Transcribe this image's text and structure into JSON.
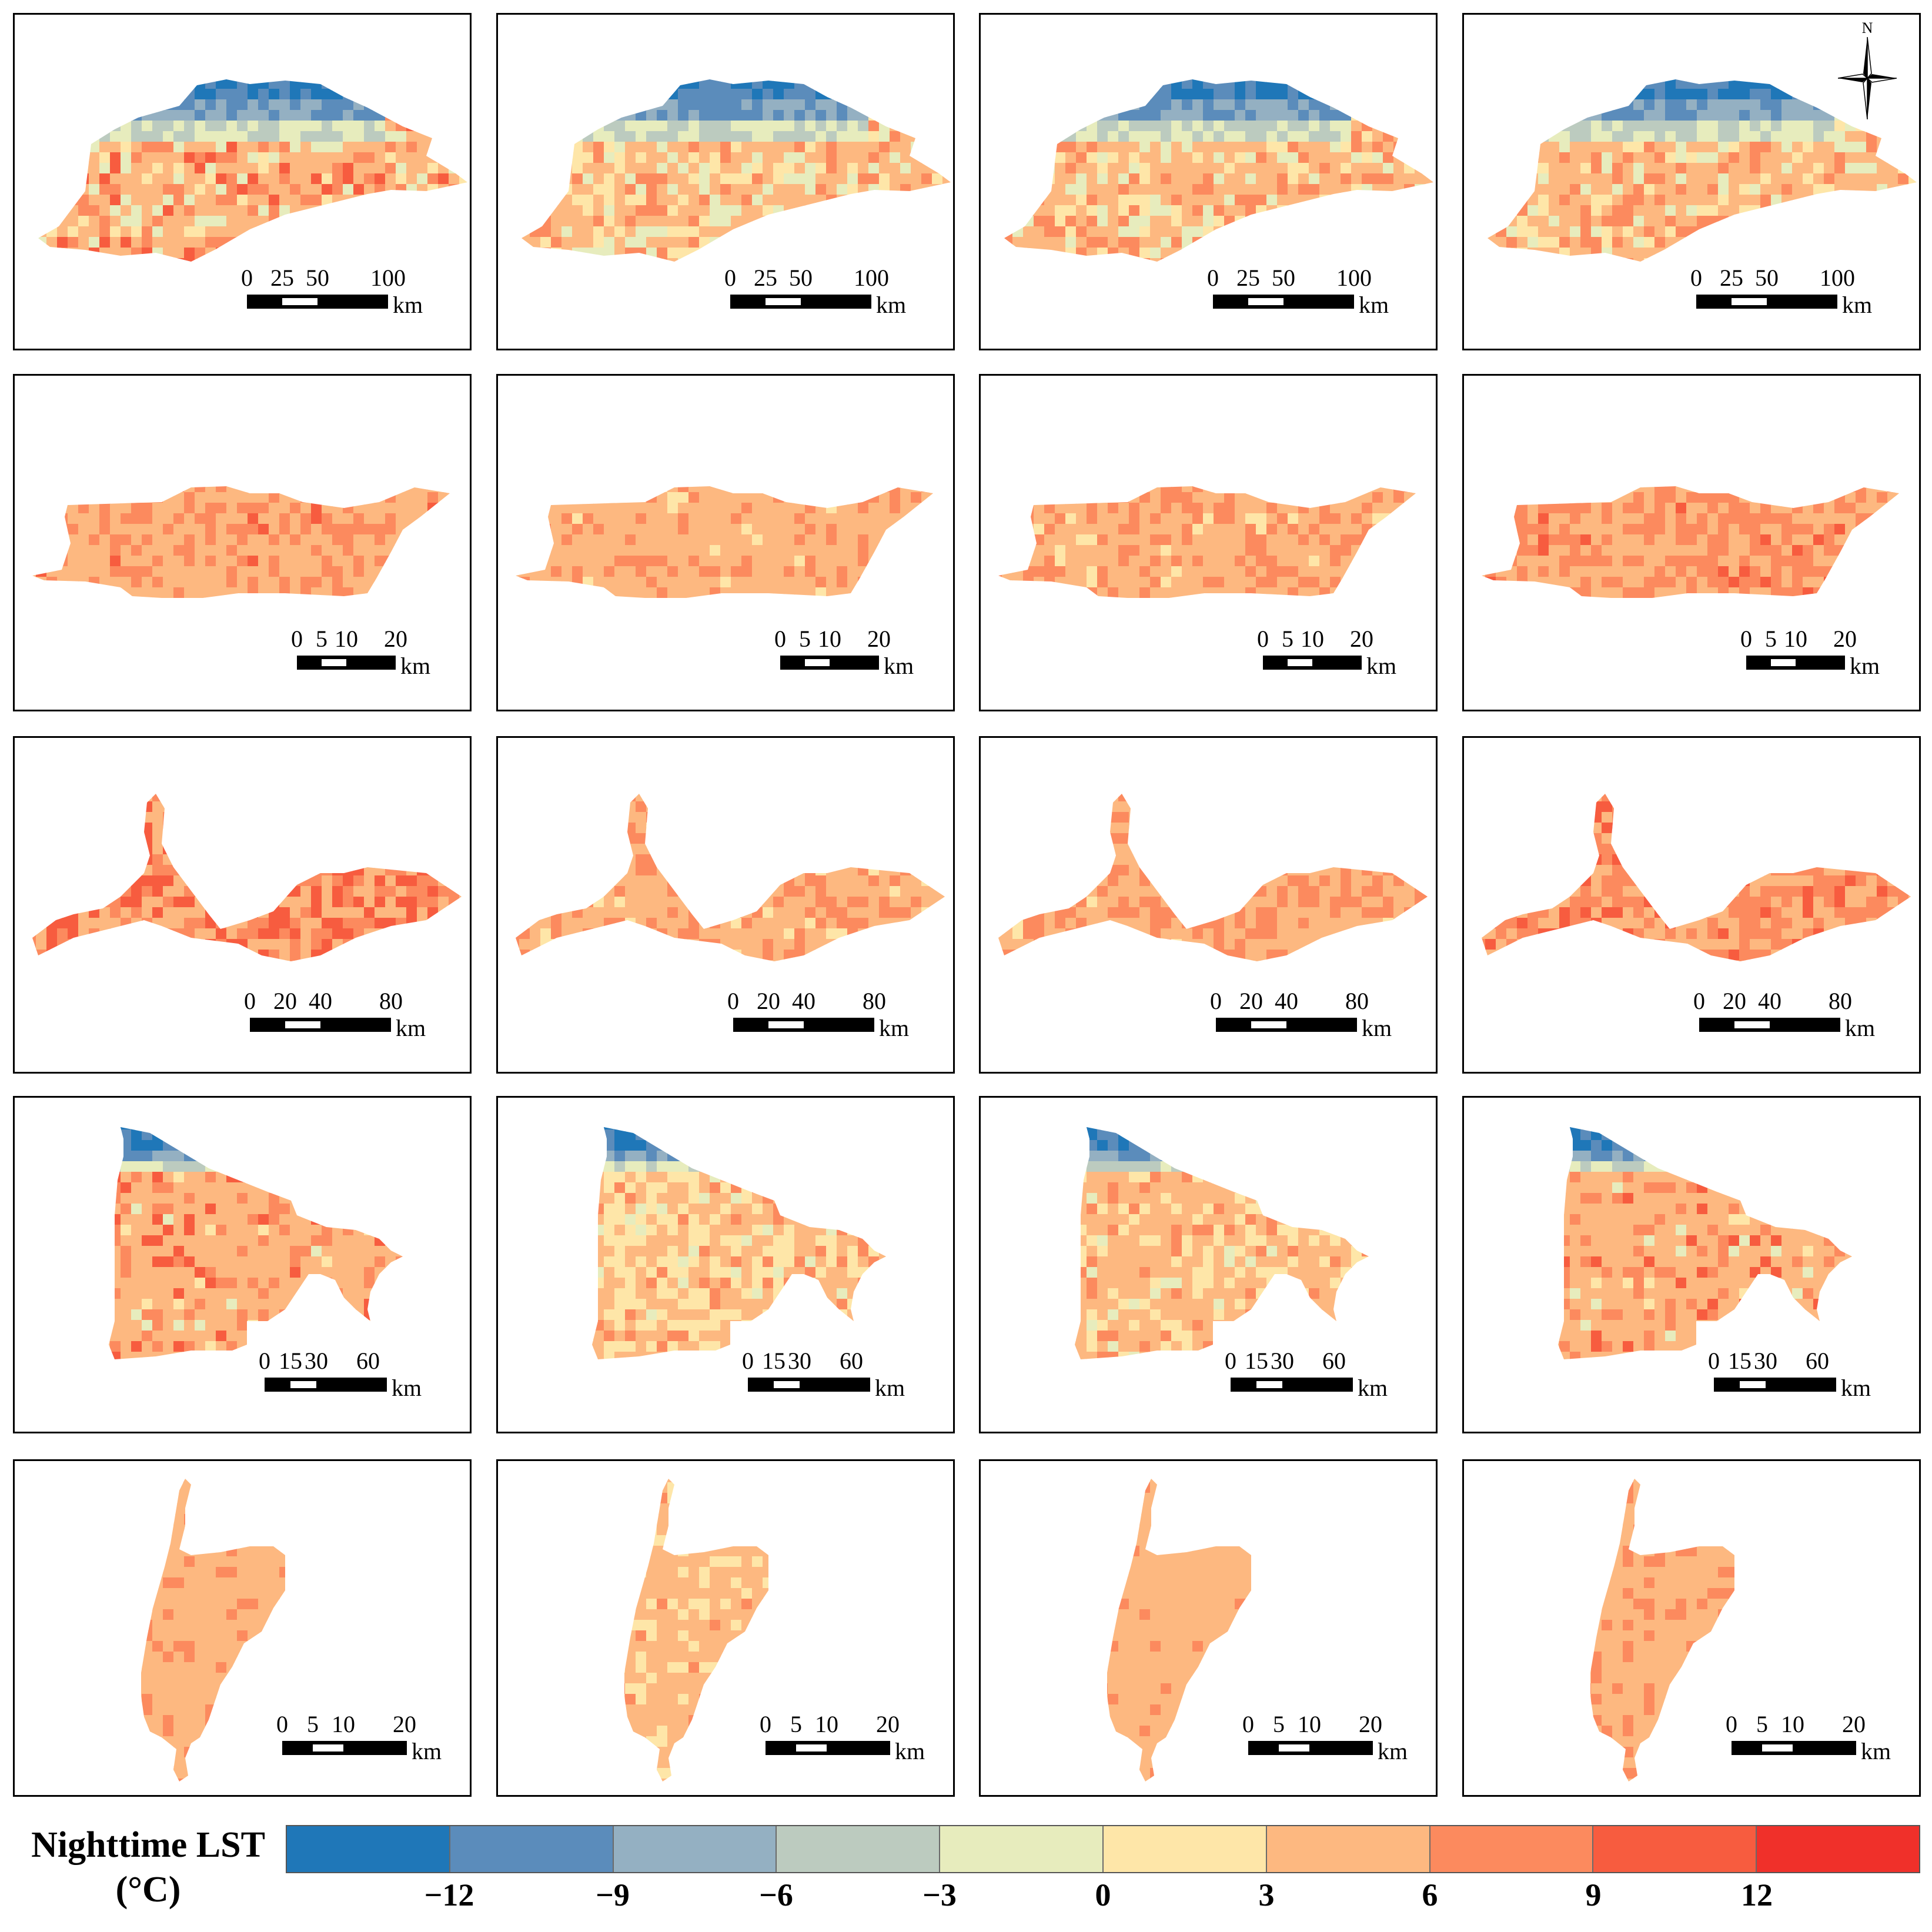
{
  "legend": {
    "title_line1": "Nighttime LST",
    "title_line2": "(°C)",
    "ticks": [
      "−12",
      "−9",
      "−6",
      "−3",
      "0",
      "3",
      "6",
      "9",
      "12"
    ],
    "colors": [
      "#1f77b8",
      "#5b8cbb",
      "#94b0c2",
      "#bccbbf",
      "#e7ecbd",
      "#fee6a8",
      "#fdb880",
      "#fc8a5e",
      "#f75c3f",
      "#f0302a"
    ]
  },
  "north_arrow": {
    "label": "N"
  },
  "scale_unit": "km",
  "rows": [
    {
      "region": "region-1",
      "scale_ticks": [
        "0",
        "25",
        "50",
        "100"
      ],
      "panels": [
        {
          "class_mix": [
            0.08,
            0.1,
            0.05,
            0.05,
            0.12,
            0.1,
            0.22,
            0.2,
            0.08,
            0.0
          ]
        },
        {
          "class_mix": [
            0.12,
            0.12,
            0.06,
            0.05,
            0.2,
            0.15,
            0.18,
            0.12,
            0.0,
            0.0
          ]
        },
        {
          "class_mix": [
            0.06,
            0.12,
            0.07,
            0.05,
            0.15,
            0.15,
            0.22,
            0.18,
            0.0,
            0.0
          ]
        },
        {
          "class_mix": [
            0.04,
            0.12,
            0.08,
            0.05,
            0.12,
            0.12,
            0.27,
            0.2,
            0.0,
            0.0
          ]
        }
      ]
    },
    {
      "region": "region-2",
      "scale_ticks": [
        "0",
        "5",
        "10",
        "20"
      ],
      "panels": [
        {
          "class_mix": [
            0,
            0,
            0,
            0,
            0,
            0,
            0.6,
            0.38,
            0.02,
            0
          ]
        },
        {
          "class_mix": [
            0,
            0,
            0,
            0,
            0,
            0.05,
            0.75,
            0.2,
            0,
            0
          ]
        },
        {
          "class_mix": [
            0,
            0,
            0,
            0,
            0,
            0.05,
            0.65,
            0.3,
            0,
            0
          ]
        },
        {
          "class_mix": [
            0,
            0,
            0,
            0,
            0,
            0,
            0.45,
            0.5,
            0.05,
            0
          ]
        }
      ]
    },
    {
      "region": "region-3",
      "scale_ticks": [
        "0",
        "20",
        "40",
        "80"
      ],
      "panels": [
        {
          "class_mix": [
            0,
            0,
            0,
            0,
            0,
            0,
            0.35,
            0.35,
            0.3,
            0
          ]
        },
        {
          "class_mix": [
            0,
            0,
            0,
            0,
            0,
            0.08,
            0.62,
            0.3,
            0,
            0
          ]
        },
        {
          "class_mix": [
            0,
            0,
            0,
            0,
            0,
            0.02,
            0.55,
            0.43,
            0,
            0
          ]
        },
        {
          "class_mix": [
            0,
            0,
            0,
            0,
            0,
            0,
            0.4,
            0.45,
            0.15,
            0
          ]
        }
      ]
    },
    {
      "region": "region-4",
      "scale_ticks": [
        "0",
        "15",
        "30",
        "60"
      ],
      "panels": [
        {
          "class_mix": [
            0,
            0.04,
            0.04,
            0.03,
            0.03,
            0.05,
            0.6,
            0.15,
            0.06,
            0
          ]
        },
        {
          "class_mix": [
            0.03,
            0.04,
            0.04,
            0.03,
            0.05,
            0.35,
            0.35,
            0.11,
            0,
            0
          ]
        },
        {
          "class_mix": [
            0.02,
            0.04,
            0.04,
            0.03,
            0.05,
            0.25,
            0.45,
            0.12,
            0,
            0
          ]
        },
        {
          "class_mix": [
            0,
            0.04,
            0.04,
            0.03,
            0.03,
            0.04,
            0.6,
            0.16,
            0.06,
            0
          ]
        }
      ]
    },
    {
      "region": "region-5",
      "scale_ticks": [
        "0",
        "5",
        "10",
        "20"
      ],
      "panels": [
        {
          "class_mix": [
            0,
            0,
            0,
            0,
            0,
            0,
            0.85,
            0.15,
            0,
            0
          ]
        },
        {
          "class_mix": [
            0,
            0,
            0,
            0,
            0,
            0.2,
            0.75,
            0.05,
            0,
            0
          ]
        },
        {
          "class_mix": [
            0,
            0,
            0,
            0,
            0,
            0,
            0.9,
            0.1,
            0,
            0
          ]
        },
        {
          "class_mix": [
            0,
            0,
            0,
            0,
            0,
            0,
            0.8,
            0.2,
            0,
            0
          ]
        }
      ]
    }
  ]
}
